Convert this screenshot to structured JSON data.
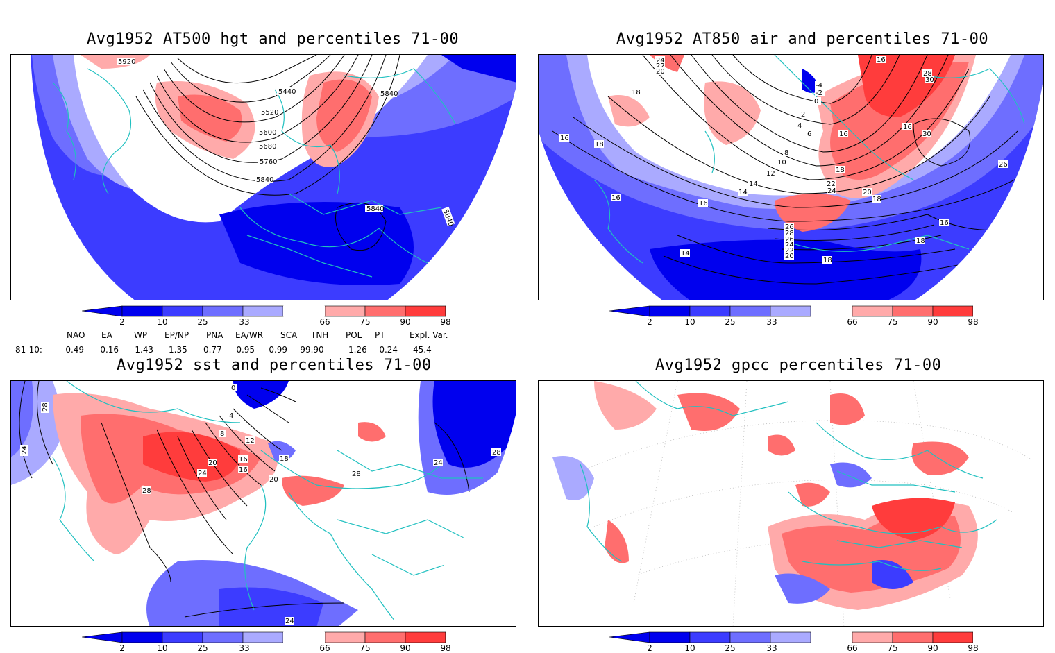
{
  "panels": [
    {
      "title": "Avg1952 AT500 hgt and percentiles 71-00",
      "contour_labels": [
        "5920",
        "5440",
        "5520",
        "5600",
        "5680",
        "5760",
        "5840",
        "5840",
        "5840",
        "5840"
      ]
    },
    {
      "title": "Avg1952 AT850 air and percentiles 71-00",
      "contour_labels": [
        "24",
        "22",
        "20",
        "18",
        "16",
        "18",
        "16",
        "14",
        "16",
        "14",
        "-4",
        "-2",
        "0",
        "2",
        "4",
        "6",
        "8",
        "10",
        "12",
        "14",
        "16",
        "18",
        "20",
        "22",
        "24",
        "26",
        "28",
        "26",
        "24",
        "22",
        "20",
        "18",
        "16",
        "30",
        "30",
        "28",
        "26",
        "16",
        "18",
        "18",
        "16"
      ]
    },
    {
      "title": "Avg1952 sst and percentiles 71-00",
      "contour_labels": [
        "28",
        "24",
        "28",
        "0",
        "4",
        "8",
        "12",
        "16",
        "20",
        "24",
        "16",
        "20",
        "18",
        "24",
        "28",
        "24",
        "28"
      ]
    },
    {
      "title": "Avg1952 gpcc percentiles 71-00",
      "contour_labels": []
    }
  ],
  "colorbar": {
    "labels": [
      "2",
      "10",
      "25",
      "33",
      "66",
      "75",
      "90",
      "98"
    ],
    "colors": [
      "#0000ee",
      "#3c3cff",
      "#6e6eff",
      "#aaaaff",
      "#ffffff",
      "#ffaaaa",
      "#ff6e6e",
      "#ff3c3c",
      "#ee0000"
    ]
  },
  "indices": {
    "header": [
      "NAO",
      "EA",
      "WP",
      "EP/NP",
      "PNA",
      "EA/WR",
      "SCA",
      "TNH",
      "POL",
      "PT",
      "Expl. Var."
    ],
    "row_label": "81-10:",
    "values": [
      "-0.49",
      "-0.16",
      "-1.43",
      "1.35",
      "0.77",
      "-0.95",
      "-0.99",
      "-99.90",
      "1.26",
      "-0.24",
      "45.4"
    ]
  }
}
